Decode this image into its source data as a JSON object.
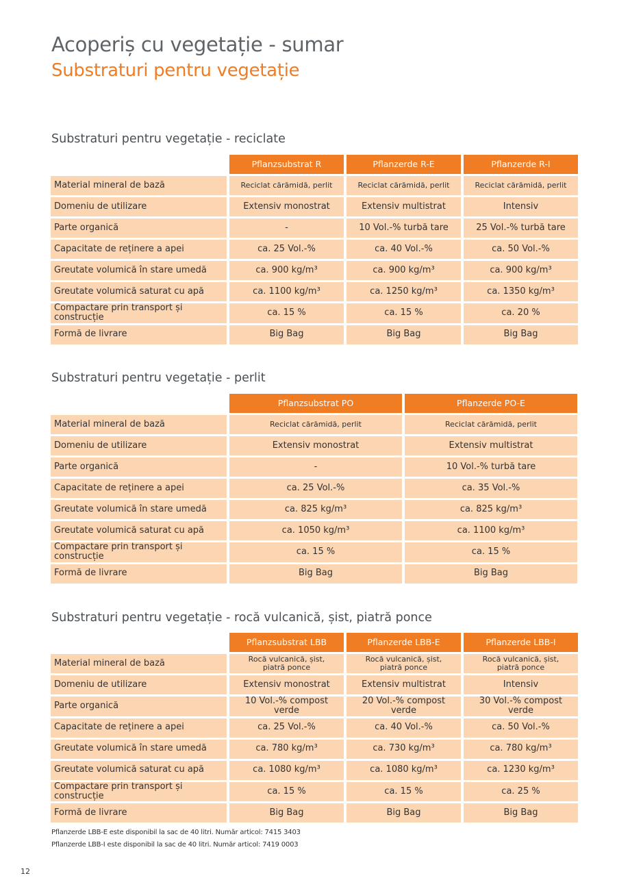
{
  "header": {
    "title": "Acoperiș cu vegetație - sumar",
    "subtitle": "Substraturi pentru vegetație"
  },
  "tables": [
    {
      "title": "Substraturi pentru vegetație - reciclate",
      "columns": [
        "Pflanzsubstrat R",
        "Pflanzerde R-E",
        "Pflanzerde R-I"
      ],
      "rows": [
        {
          "label": "Material mineral de bază",
          "cells": [
            "Reciclat cărămidă, perlit",
            "Reciclat cărămidă, perlit",
            "Reciclat cărămidă, perlit"
          ]
        },
        {
          "label": "Domeniu de utilizare",
          "cells": [
            "Extensiv monostrat",
            "Extensiv multistrat",
            "Intensiv"
          ]
        },
        {
          "label": "Parte organică",
          "cells": [
            "-",
            "10 Vol.-% turbă tare",
            "25 Vol.-% turbă tare"
          ]
        },
        {
          "label": "Capacitate de reținere a apei",
          "cells": [
            "ca. 25 Vol.-%",
            "ca. 40 Vol.-%",
            "ca. 50 Vol.-%"
          ]
        },
        {
          "label": "Greutate volumică în stare umedă",
          "cells": [
            "ca. 900 kg/m³",
            "ca. 900 kg/m³",
            "ca. 900 kg/m³"
          ]
        },
        {
          "label": "Greutate volumică saturat cu apă",
          "cells": [
            "ca. 1100 kg/m³",
            "ca. 1250 kg/m³",
            "ca. 1350 kg/m³"
          ]
        },
        {
          "label": "Compactare prin transport și construcție",
          "cells": [
            "ca. 15 %",
            "ca. 15 %",
            "ca. 20 %"
          ]
        },
        {
          "label": "Formă de livrare",
          "cells": [
            "Big Bag",
            "Big Bag",
            "Big Bag"
          ]
        }
      ]
    },
    {
      "title": "Substraturi pentru vegetație - perlit",
      "columns": [
        "Pflanzsubstrat PO",
        "Pflanzerde PO-E"
      ],
      "rows": [
        {
          "label": "Material mineral de bază",
          "cells": [
            "Reciclat cărămidă, perlit",
            "Reciclat cărămidă, perlit"
          ]
        },
        {
          "label": "Domeniu de utilizare",
          "cells": [
            "Extensiv monostrat",
            "Extensiv multistrat"
          ]
        },
        {
          "label": "Parte organică",
          "cells": [
            "-",
            "10 Vol.-% turbă tare"
          ]
        },
        {
          "label": "Capacitate de reținere a apei",
          "cells": [
            "ca. 25 Vol.-%",
            "ca. 35 Vol.-%"
          ]
        },
        {
          "label": "Greutate volumică în stare umedă",
          "cells": [
            "ca. 825 kg/m³",
            "ca. 825 kg/m³"
          ]
        },
        {
          "label": "Greutate volumică saturat cu apă",
          "cells": [
            "ca. 1050 kg/m³",
            "ca. 1100 kg/m³"
          ]
        },
        {
          "label": "Compactare prin transport și construcție",
          "cells": [
            "ca. 15 %",
            "ca. 15 %"
          ]
        },
        {
          "label": "Formă de livrare",
          "cells": [
            "Big Bag",
            "Big Bag"
          ]
        }
      ]
    },
    {
      "title": "Substraturi pentru vegetație - rocă vulcanică, șist, piatră ponce",
      "columns": [
        "Pflanzsubstrat LBB",
        "Pflanzerde LBB-E",
        "Pflanzerde LBB-I"
      ],
      "rows": [
        {
          "label": "Material mineral de bază",
          "cells": [
            "Rocă vulcanică, șist,\npiatră ponce",
            "Rocă vulcanică, șist,\npiatră ponce",
            "Rocă vulcanică, șist,\npiatră ponce"
          ]
        },
        {
          "label": "Domeniu de utilizare",
          "cells": [
            "Extensiv monostrat",
            "Extensiv multistrat",
            "Intensiv"
          ]
        },
        {
          "label": "Parte organică",
          "cells": [
            "10 Vol.-% compost verde",
            "20 Vol.-% compost verde",
            "30 Vol.-% compost verde"
          ]
        },
        {
          "label": "Capacitate de reținere a apei",
          "cells": [
            "ca. 25 Vol.-%",
            "ca. 40 Vol.-%",
            "ca. 50 Vol.-%"
          ]
        },
        {
          "label": "Greutate volumică în stare umedă",
          "cells": [
            "ca. 780 kg/m³",
            "ca. 730 kg/m³",
            "ca. 780 kg/m³"
          ]
        },
        {
          "label": "Greutate volumică saturat cu apă",
          "cells": [
            "ca. 1080 kg/m³",
            "ca. 1080 kg/m³",
            "ca. 1230 kg/m³"
          ]
        },
        {
          "label": "Compactare prin transport și construcție",
          "cells": [
            "ca. 15 %",
            "ca. 15 %",
            "ca. 25 %"
          ]
        },
        {
          "label": "Formă de livrare",
          "cells": [
            "Big Bag",
            "Big Bag",
            "Big Bag"
          ]
        }
      ]
    }
  ],
  "notes": [
    "Pflanzerde LBB-E este disponibil la sac de 40 litri. Număr articol: 7415 3403",
    "Pflanzerde LBB-I este disponibil la sac de 40 litri. Număr articol: 7419 0003"
  ],
  "page_number": "12"
}
